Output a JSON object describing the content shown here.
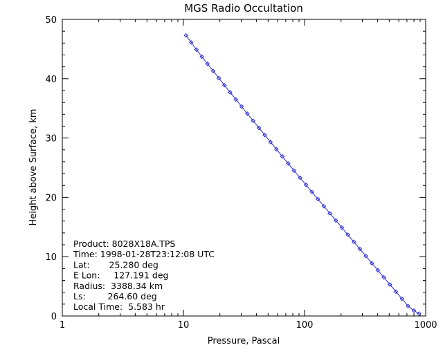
{
  "chart_data": {
    "type": "scatter",
    "title": "MGS Radio Occultation",
    "xlabel": "Pressure, Pascal",
    "ylabel": "Height above Surface, km",
    "x_scale": "log",
    "xlim": [
      1,
      1000
    ],
    "ylim": [
      0,
      50
    ],
    "x_ticks": [
      1,
      10,
      100,
      1000
    ],
    "x_tick_labels": [
      "1",
      "10",
      "100",
      "1000"
    ],
    "y_ticks": [
      0,
      10,
      20,
      30,
      40,
      50
    ],
    "y_tick_labels": [
      "0",
      "10",
      "20",
      "30",
      "40",
      "50"
    ],
    "grid": false,
    "series": [
      {
        "color": "#2a2ad0",
        "marker": "diamond",
        "x": [
          10.5,
          11.6,
          12.8,
          14.2,
          15.8,
          17.6,
          19.6,
          21.8,
          24.3,
          27.1,
          30.2,
          33.7,
          37.6,
          42.0,
          46.9,
          52.4,
          58.6,
          65.5,
          73.3,
          82.0,
          91.8,
          102.8,
          115.1,
          128.9,
          144.4,
          161.8,
          181.3,
          203.2,
          227.7,
          255.2,
          286.0,
          320.6,
          359.4,
          402.9,
          451.7,
          506.4,
          567.8,
          636.6,
          713.8,
          800.4,
          880.0
        ],
        "y": [
          47.3,
          46.1,
          44.9,
          43.7,
          42.5,
          41.3,
          40.1,
          38.9,
          37.7,
          36.5,
          35.3,
          34.1,
          32.9,
          31.7,
          30.5,
          29.3,
          28.1,
          26.9,
          25.7,
          24.5,
          23.3,
          22.1,
          20.9,
          19.7,
          18.5,
          17.3,
          16.1,
          14.9,
          13.7,
          12.5,
          11.3,
          10.1,
          8.9,
          7.7,
          6.5,
          5.3,
          4.1,
          2.9,
          1.7,
          0.9,
          0.4
        ]
      }
    ]
  },
  "annotation": {
    "lines": [
      "Product: 8028X18A.TPS",
      "Time: 1998-01-28T23:12:08 UTC",
      "Lat:       25.280 deg",
      "E Lon:     127.191 deg",
      "Radius:  3388.34 km",
      "Ls:        264.60 deg",
      "Local Time:  5.583 hr"
    ]
  }
}
